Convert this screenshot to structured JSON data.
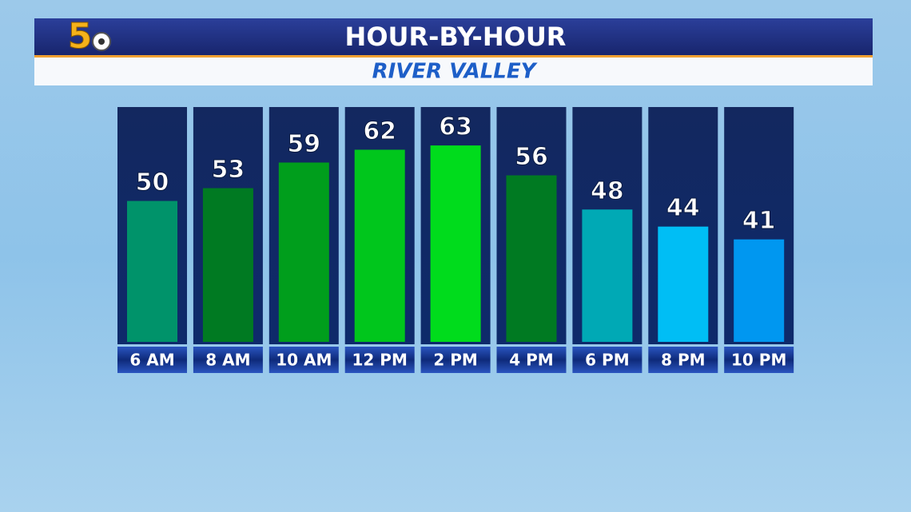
{
  "chart_data": {
    "type": "bar",
    "logo": "5",
    "title": "HOUR-BY-HOUR",
    "subtitle": "RIVER VALLEY",
    "categories": [
      "6 AM",
      "8 AM",
      "10 AM",
      "12 PM",
      "2 PM",
      "4 PM",
      "6 PM",
      "8 PM",
      "10 PM"
    ],
    "values": [
      50,
      53,
      59,
      62,
      63,
      56,
      48,
      44,
      41
    ],
    "colors": [
      "#00936a",
      "#007a22",
      "#009e1c",
      "#00c61c",
      "#00dc1c",
      "#007a22",
      "#00a9b5",
      "#00bef5",
      "#0097f0"
    ],
    "ylim": [
      17,
      72
    ]
  }
}
